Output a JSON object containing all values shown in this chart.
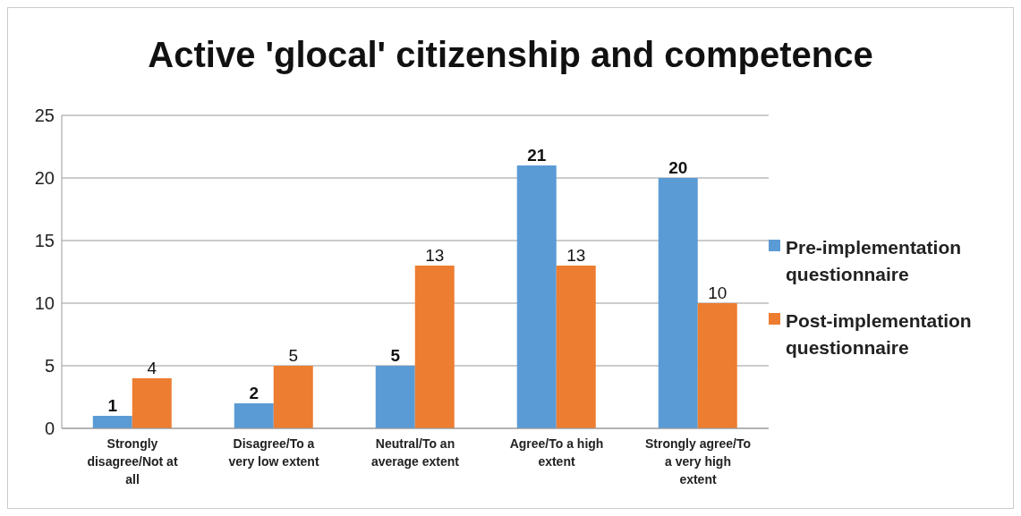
{
  "chart_data": {
    "type": "bar",
    "title": "Active 'glocal' citizenship and competence",
    "categories": [
      "Strongly disagree/Not at all",
      "Disagree/To a very low extent",
      "Neutral/To an average extent",
      "Agree/To a high extent",
      "Strongly agree/To a very high extent"
    ],
    "series": [
      {
        "name": "Pre-implementation questionnaire",
        "color": "#5b9bd5",
        "values": [
          1,
          2,
          5,
          21,
          20
        ]
      },
      {
        "name": "Post-implementation questionnaire",
        "color": "#ed7d31",
        "values": [
          4,
          5,
          13,
          13,
          10
        ]
      }
    ],
    "ylim": [
      0,
      25
    ],
    "yticks": [
      0,
      5,
      10,
      15,
      20,
      25
    ],
    "grid": "y",
    "legend": "right",
    "data_labels": true
  }
}
